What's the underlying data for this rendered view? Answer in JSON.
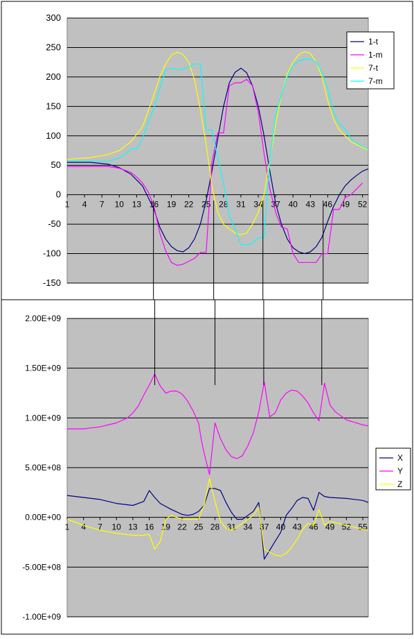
{
  "chart_data": [
    {
      "type": "line",
      "ylim": [
        -150,
        300
      ],
      "y_ticks": [
        -150,
        -100,
        -50,
        0,
        50,
        100,
        150,
        200,
        250,
        300
      ],
      "x_ticks": [
        "1",
        "4",
        "7",
        "10",
        "13",
        "16",
        "19",
        "22",
        "25",
        "28",
        "31",
        "34",
        "37",
        "40",
        "43",
        "46",
        "49",
        "52"
      ],
      "x_range": [
        1,
        53
      ],
      "grid": true,
      "legend": "top-right",
      "series": [
        {
          "name": "1-t",
          "color": "#000080",
          "x": [
            1,
            5,
            8,
            10,
            12,
            14,
            16,
            17,
            18,
            19,
            20,
            21,
            22,
            23,
            24,
            25,
            26,
            27,
            28,
            29,
            30,
            31,
            32,
            33,
            34,
            35,
            36,
            37,
            38,
            39,
            40,
            41,
            42,
            43,
            44,
            45,
            46,
            47,
            48,
            49,
            50,
            51,
            52,
            53
          ],
          "y": [
            55,
            55,
            52,
            46,
            35,
            15,
            -25,
            -55,
            -75,
            -88,
            -95,
            -97,
            -90,
            -75,
            -50,
            -10,
            40,
            95,
            150,
            190,
            208,
            215,
            207,
            185,
            150,
            100,
            40,
            -15,
            -50,
            -75,
            -90,
            -97,
            -100,
            -97,
            -88,
            -72,
            -45,
            -20,
            0,
            15,
            25,
            33,
            40,
            44
          ]
        },
        {
          "name": "1-m",
          "color": "#ff00ff",
          "x": [
            1,
            5,
            8,
            10,
            12,
            13,
            14,
            15,
            16,
            17,
            18,
            19,
            20,
            21,
            22,
            23,
            24,
            25,
            26,
            27,
            28,
            29,
            30,
            31,
            32,
            33,
            34,
            35,
            36,
            37,
            38,
            39,
            40,
            41,
            42,
            43,
            44,
            45,
            46,
            47,
            48,
            49,
            50,
            51,
            52
          ],
          "y": [
            48,
            48,
            48,
            45,
            38,
            30,
            20,
            5,
            -20,
            -65,
            -95,
            -115,
            -120,
            -118,
            -113,
            -108,
            -98,
            -98,
            55,
            105,
            105,
            185,
            190,
            190,
            196,
            185,
            140,
            70,
            10,
            -30,
            -55,
            -58,
            -100,
            -115,
            -115,
            -115,
            -115,
            -100,
            -100,
            -25,
            -25,
            -5,
            0,
            10,
            20
          ]
        },
        {
          "name": "7-t",
          "color": "#ffff00",
          "x": [
            1,
            5,
            8,
            10,
            12,
            14,
            16,
            17,
            18,
            19,
            20,
            21,
            22,
            23,
            24,
            25,
            26,
            27,
            28,
            29,
            30,
            31,
            32,
            33,
            34,
            35,
            36,
            37,
            38,
            39,
            40,
            41,
            42,
            43,
            44,
            45,
            46,
            47,
            48,
            49,
            50,
            51,
            52,
            53
          ],
          "y": [
            60,
            63,
            68,
            75,
            90,
            115,
            170,
            200,
            222,
            237,
            242,
            238,
            225,
            195,
            145,
            85,
            15,
            -30,
            -50,
            -58,
            -65,
            -68,
            -65,
            -50,
            -30,
            0,
            60,
            120,
            170,
            205,
            225,
            238,
            243,
            240,
            225,
            200,
            160,
            128,
            110,
            100,
            90,
            85,
            80,
            76
          ]
        },
        {
          "name": "7-m",
          "color": "#00ffff",
          "x": [
            1,
            5,
            8,
            10,
            11,
            12,
            13,
            14,
            15,
            16,
            17,
            18,
            19,
            20,
            21,
            22,
            23,
            24,
            25,
            26,
            27,
            28,
            29,
            30,
            31,
            32,
            33,
            34,
            35,
            36,
            37,
            38,
            39,
            40,
            41,
            42,
            43,
            44,
            45,
            46,
            47,
            48,
            49,
            50,
            51,
            52,
            53
          ],
          "y": [
            57,
            57,
            57,
            62,
            68,
            78,
            78,
            95,
            122,
            148,
            180,
            212,
            215,
            212,
            213,
            217,
            222,
            222,
            110,
            110,
            62,
            20,
            -35,
            -58,
            -85,
            -85,
            -83,
            -73,
            -73,
            60,
            135,
            170,
            200,
            220,
            227,
            230,
            230,
            225,
            208,
            180,
            140,
            120,
            112,
            95,
            88,
            82,
            77
          ]
        }
      ]
    },
    {
      "type": "line",
      "ylim": [
        -1000000000,
        2000000000
      ],
      "y_ticks": [
        "-1.00E+09",
        "-5.00E+08",
        "0.00E+00",
        "5.00E+08",
        "1.00E+09",
        "1.50E+09",
        "2.00E+09"
      ],
      "y_tick_values": [
        -1000000000,
        -500000000,
        0,
        500000000,
        1000000000,
        1500000000,
        2000000000
      ],
      "x_ticks": [
        "1",
        "4",
        "7",
        "10",
        "13",
        "16",
        "19",
        "22",
        "25",
        "28",
        "31",
        "34",
        "37",
        "40",
        "43",
        "46",
        "49",
        "52",
        "55"
      ],
      "x_range": [
        1,
        56
      ],
      "grid": true,
      "legend": "right",
      "series": [
        {
          "name": "X",
          "color": "#000080",
          "x": [
            1,
            4,
            7,
            10,
            13,
            15,
            16,
            17,
            18,
            20,
            22,
            23,
            24,
            25,
            26,
            27,
            28,
            29,
            30,
            31,
            32,
            33,
            34,
            35,
            36,
            37,
            38,
            39,
            40,
            41,
            42,
            43,
            44,
            45,
            46,
            47,
            48,
            49,
            52,
            55,
            56
          ],
          "y": [
            220000000,
            200000000,
            180000000,
            140000000,
            120000000,
            160000000,
            270000000,
            200000000,
            140000000,
            80000000,
            30000000,
            20000000,
            30000000,
            60000000,
            120000000,
            290000000,
            290000000,
            270000000,
            150000000,
            50000000,
            -20000000,
            -20000000,
            20000000,
            60000000,
            150000000,
            -420000000,
            -330000000,
            -240000000,
            -150000000,
            20000000,
            90000000,
            170000000,
            200000000,
            190000000,
            70000000,
            250000000,
            210000000,
            200000000,
            190000000,
            170000000,
            150000000
          ]
        },
        {
          "name": "Y",
          "color": "#ff00ff",
          "x": [
            1,
            4,
            7,
            10,
            12,
            13,
            14,
            15,
            16,
            17,
            18,
            19,
            20,
            21,
            22,
            23,
            24,
            25,
            25.5,
            26,
            27,
            28,
            29,
            30,
            31,
            32,
            33,
            34,
            35,
            36,
            37,
            38,
            39,
            40,
            41,
            42,
            43,
            44,
            45,
            46,
            47,
            48,
            49,
            50,
            52,
            55,
            56
          ],
          "y": [
            890000000,
            890000000,
            910000000,
            950000000,
            1000000000,
            1050000000,
            1120000000,
            1230000000,
            1330000000,
            1440000000,
            1320000000,
            1250000000,
            1270000000,
            1270000000,
            1240000000,
            1170000000,
            1070000000,
            950000000,
            780000000,
            650000000,
            430000000,
            950000000,
            790000000,
            680000000,
            610000000,
            590000000,
            620000000,
            720000000,
            850000000,
            1060000000,
            1360000000,
            1010000000,
            1050000000,
            1180000000,
            1250000000,
            1280000000,
            1270000000,
            1220000000,
            1150000000,
            1050000000,
            970000000,
            1350000000,
            1130000000,
            1060000000,
            980000000,
            930000000,
            920000000
          ]
        },
        {
          "name": "Z",
          "color": "#ffff00",
          "x": [
            1,
            4,
            7,
            10,
            13,
            15,
            16,
            17,
            18,
            19,
            20,
            21,
            22,
            23,
            24,
            25,
            26,
            27,
            28,
            29,
            30,
            31,
            32,
            33,
            34,
            35,
            36,
            37,
            38,
            39,
            40,
            41,
            42,
            43,
            44,
            45,
            46,
            47,
            48,
            49,
            52,
            55,
            56
          ],
          "y": [
            -20000000,
            -80000000,
            -130000000,
            -160000000,
            -180000000,
            -180000000,
            -170000000,
            -320000000,
            -240000000,
            -20000000,
            20000000,
            0,
            -20000000,
            -20000000,
            -20000000,
            -20000000,
            120000000,
            390000000,
            160000000,
            -40000000,
            -110000000,
            -130000000,
            -100000000,
            -60000000,
            -20000000,
            20000000,
            100000000,
            -320000000,
            -350000000,
            -380000000,
            -390000000,
            -360000000,
            -300000000,
            -220000000,
            -120000000,
            -60000000,
            -80000000,
            80000000,
            -80000000,
            -40000000,
            -80000000,
            -120000000,
            -130000000
          ]
        }
      ]
    }
  ],
  "connectors": [
    {
      "x_top": 15.9,
      "x_bottom": 17
    },
    {
      "x_top": 26.3,
      "x_bottom": 28
    },
    {
      "x_top": 34.8,
      "x_bottom": 36.9
    },
    {
      "x_top": 45.2,
      "x_bottom": 47.5
    }
  ],
  "colors": {
    "plot_area": "#c0c0c0",
    "border": "#000000",
    "gridline": "#000000"
  }
}
